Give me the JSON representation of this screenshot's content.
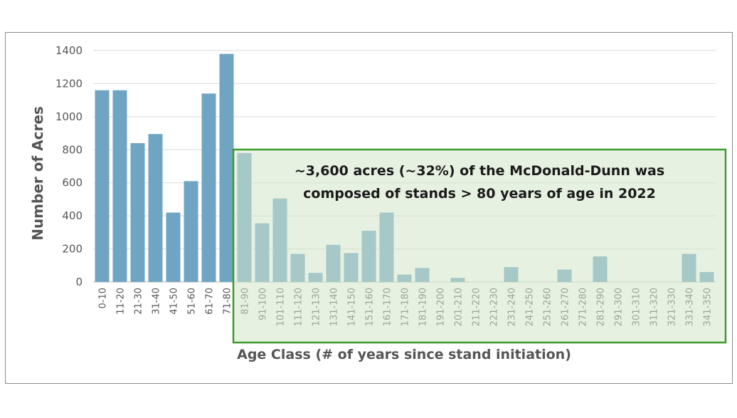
{
  "chart_data": {
    "type": "bar",
    "ylabel": "Number of Acres",
    "xlabel": "Age Class (# of years since stand initiation)",
    "ylim": [
      0,
      1400
    ],
    "yticks": [
      0,
      200,
      400,
      600,
      800,
      1000,
      1200,
      1400
    ],
    "grid": true,
    "categories": [
      "0-10",
      "11-20",
      "21-30",
      "31-40",
      "41-50",
      "51-60",
      "61-70",
      "71-80",
      "81-90",
      "91-100",
      "101-110",
      "111-120",
      "121-130",
      "131-140",
      "141-150",
      "151-160",
      "161-170",
      "171-180",
      "181-190",
      "191-200",
      "201-210",
      "211-220",
      "221-230",
      "231-240",
      "241-250",
      "251-260",
      "261-270",
      "271-280",
      "281-290",
      "291-300",
      "301-310",
      "311-320",
      "321-330",
      "331-340",
      "341-350"
    ],
    "values": [
      1160,
      1160,
      840,
      895,
      420,
      610,
      1140,
      1380,
      780,
      355,
      505,
      170,
      55,
      225,
      175,
      310,
      420,
      45,
      85,
      0,
      25,
      0,
      0,
      90,
      0,
      0,
      75,
      0,
      155,
      0,
      0,
      0,
      0,
      170,
      60
    ],
    "colors": {
      "bar": "#6fa5c2",
      "highlight_fill": "#d3e5ca",
      "highlight_border": "#3f9a2c",
      "grid": "#d9d9d9"
    },
    "highlight": {
      "from_category": "81-90",
      "to_category": "341-350",
      "annotation_lines": [
        "~3,600 acres (~32%) of the McDonald-Dunn was",
        "composed of stands > 80 years of age in 2022"
      ]
    }
  }
}
